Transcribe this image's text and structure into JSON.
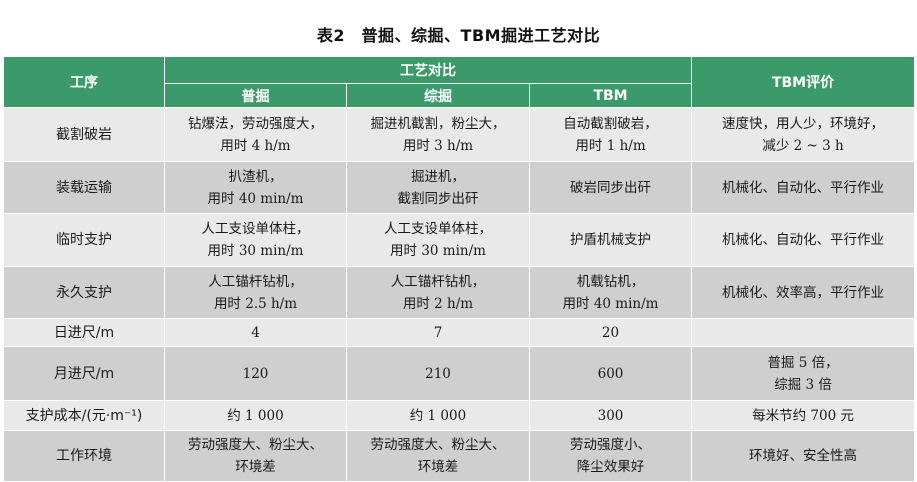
{
  "caption": "表2　普掘、综掘、TBM掘进工艺对比",
  "header": {
    "process": "工序",
    "comparison": "工艺对比",
    "evaluation": "TBM评价",
    "col_pujue": "普掘",
    "col_zongjue": "综掘",
    "col_tbm": "TBM"
  },
  "rows": [
    {
      "label": "截割破岩",
      "pujue": [
        "钻爆法，劳动强度大，",
        "用时 4 h/m"
      ],
      "zongjue": [
        "掘进机截割，粉尘大，",
        "用时 3 h/m"
      ],
      "tbm": [
        "自动截割破岩，",
        "用时 1 h/m"
      ],
      "eval": [
        "速度快，用人少，环境好，",
        "减少 2 ~ 3 h"
      ]
    },
    {
      "label": "装载运输",
      "pujue": [
        "扒渣机，",
        "用时 40 min/m"
      ],
      "zongjue": [
        "掘进机，",
        "截割同步出矸"
      ],
      "tbm": [
        "破岩同步出矸"
      ],
      "eval": [
        "机械化、自动化、平行作业"
      ]
    },
    {
      "label": "临时支护",
      "pujue": [
        "人工支设单体柱，",
        "用时 30 min/m"
      ],
      "zongjue": [
        "人工支设单体柱，",
        "用时 30 min/m"
      ],
      "tbm": [
        "护盾机械支护"
      ],
      "eval": [
        "机械化、自动化、平行作业"
      ]
    },
    {
      "label": "永久支护",
      "pujue": [
        "人工锚杆钻机，",
        "用时 2.5 h/m"
      ],
      "zongjue": [
        "人工锚杆钻机，",
        "用时 2 h/m"
      ],
      "tbm": [
        "机载钻机，",
        "用时 40 min/m"
      ],
      "eval": [
        "机械化、效率高，平行作业"
      ]
    },
    {
      "label": "日进尺/m",
      "pujue": [
        "4"
      ],
      "zongjue": [
        "7"
      ],
      "tbm": [
        "20"
      ],
      "eval": [
        ""
      ]
    },
    {
      "label": "月进尺/m",
      "pujue": [
        "120"
      ],
      "zongjue": [
        "210"
      ],
      "tbm": [
        "600"
      ],
      "eval": [
        "普掘 5 倍，",
        "综掘 3 倍"
      ]
    },
    {
      "label": "支护成本/(元·m⁻¹)",
      "pujue": [
        "约 1 000"
      ],
      "zongjue": [
        "约 1 000"
      ],
      "tbm": [
        "300"
      ],
      "eval": [
        "每米节约 700 元"
      ]
    },
    {
      "label": "工作环境",
      "pujue": [
        "劳动强度大、粉尘大、",
        "环境差"
      ],
      "zongjue": [
        "劳动强度大、粉尘大、",
        "环境差"
      ],
      "tbm": [
        "劳动强度小、",
        "降尘效果好"
      ],
      "eval": [
        "环境好、安全性高"
      ]
    }
  ]
}
